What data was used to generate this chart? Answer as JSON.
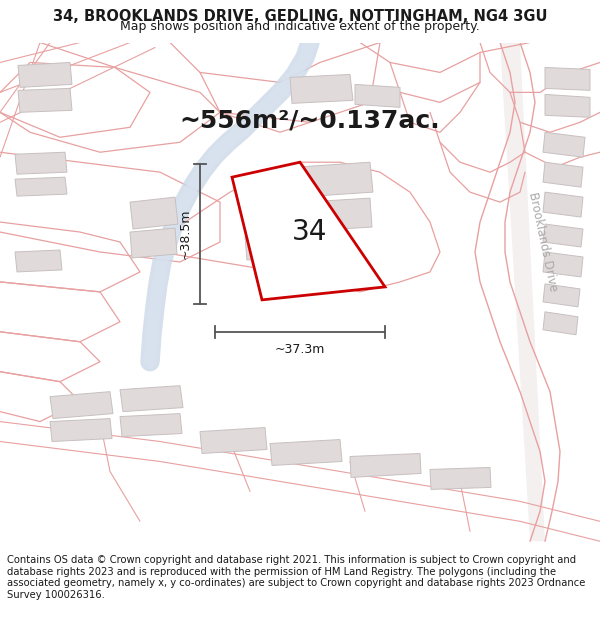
{
  "title": "34, BROOKLANDS DRIVE, GEDLING, NOTTINGHAM, NG4 3GU",
  "subtitle": "Map shows position and indicative extent of the property.",
  "area_text": "~556m²/~0.137ac.",
  "plot_number": "34",
  "dim_width": "~37.3m",
  "dim_height": "~38.5m",
  "street_label": "Brooklands Drive",
  "footer_text": "Contains OS data © Crown copyright and database right 2021. This information is subject to Crown copyright and database rights 2023 and is reproduced with the permission of HM Land Registry. The polygons (including the associated geometry, namely x, y co-ordinates) are subject to Crown copyright and database rights 2023 Ordnance Survey 100026316.",
  "map_bg": "#ffffff",
  "plot_fill": "#ffffff",
  "plot_outline": "#cc0000",
  "road_line_color": "#e8a0a0",
  "road_fill": "#f5e8e8",
  "building_fill": "#e0dada",
  "building_outline": "#c8c0c0",
  "water_color_outer": "#ccd8e8",
  "water_color_inner": "#d8e4f0",
  "dim_line_color": "#555555",
  "text_color": "#1a1a1a",
  "street_label_color": "#aaaaaa",
  "title_fontsize": 10.5,
  "subtitle_fontsize": 9,
  "area_fontsize": 18,
  "plot_number_fontsize": 20,
  "dim_fontsize": 9,
  "footer_fontsize": 7.2,
  "street_fontsize": 8.5
}
